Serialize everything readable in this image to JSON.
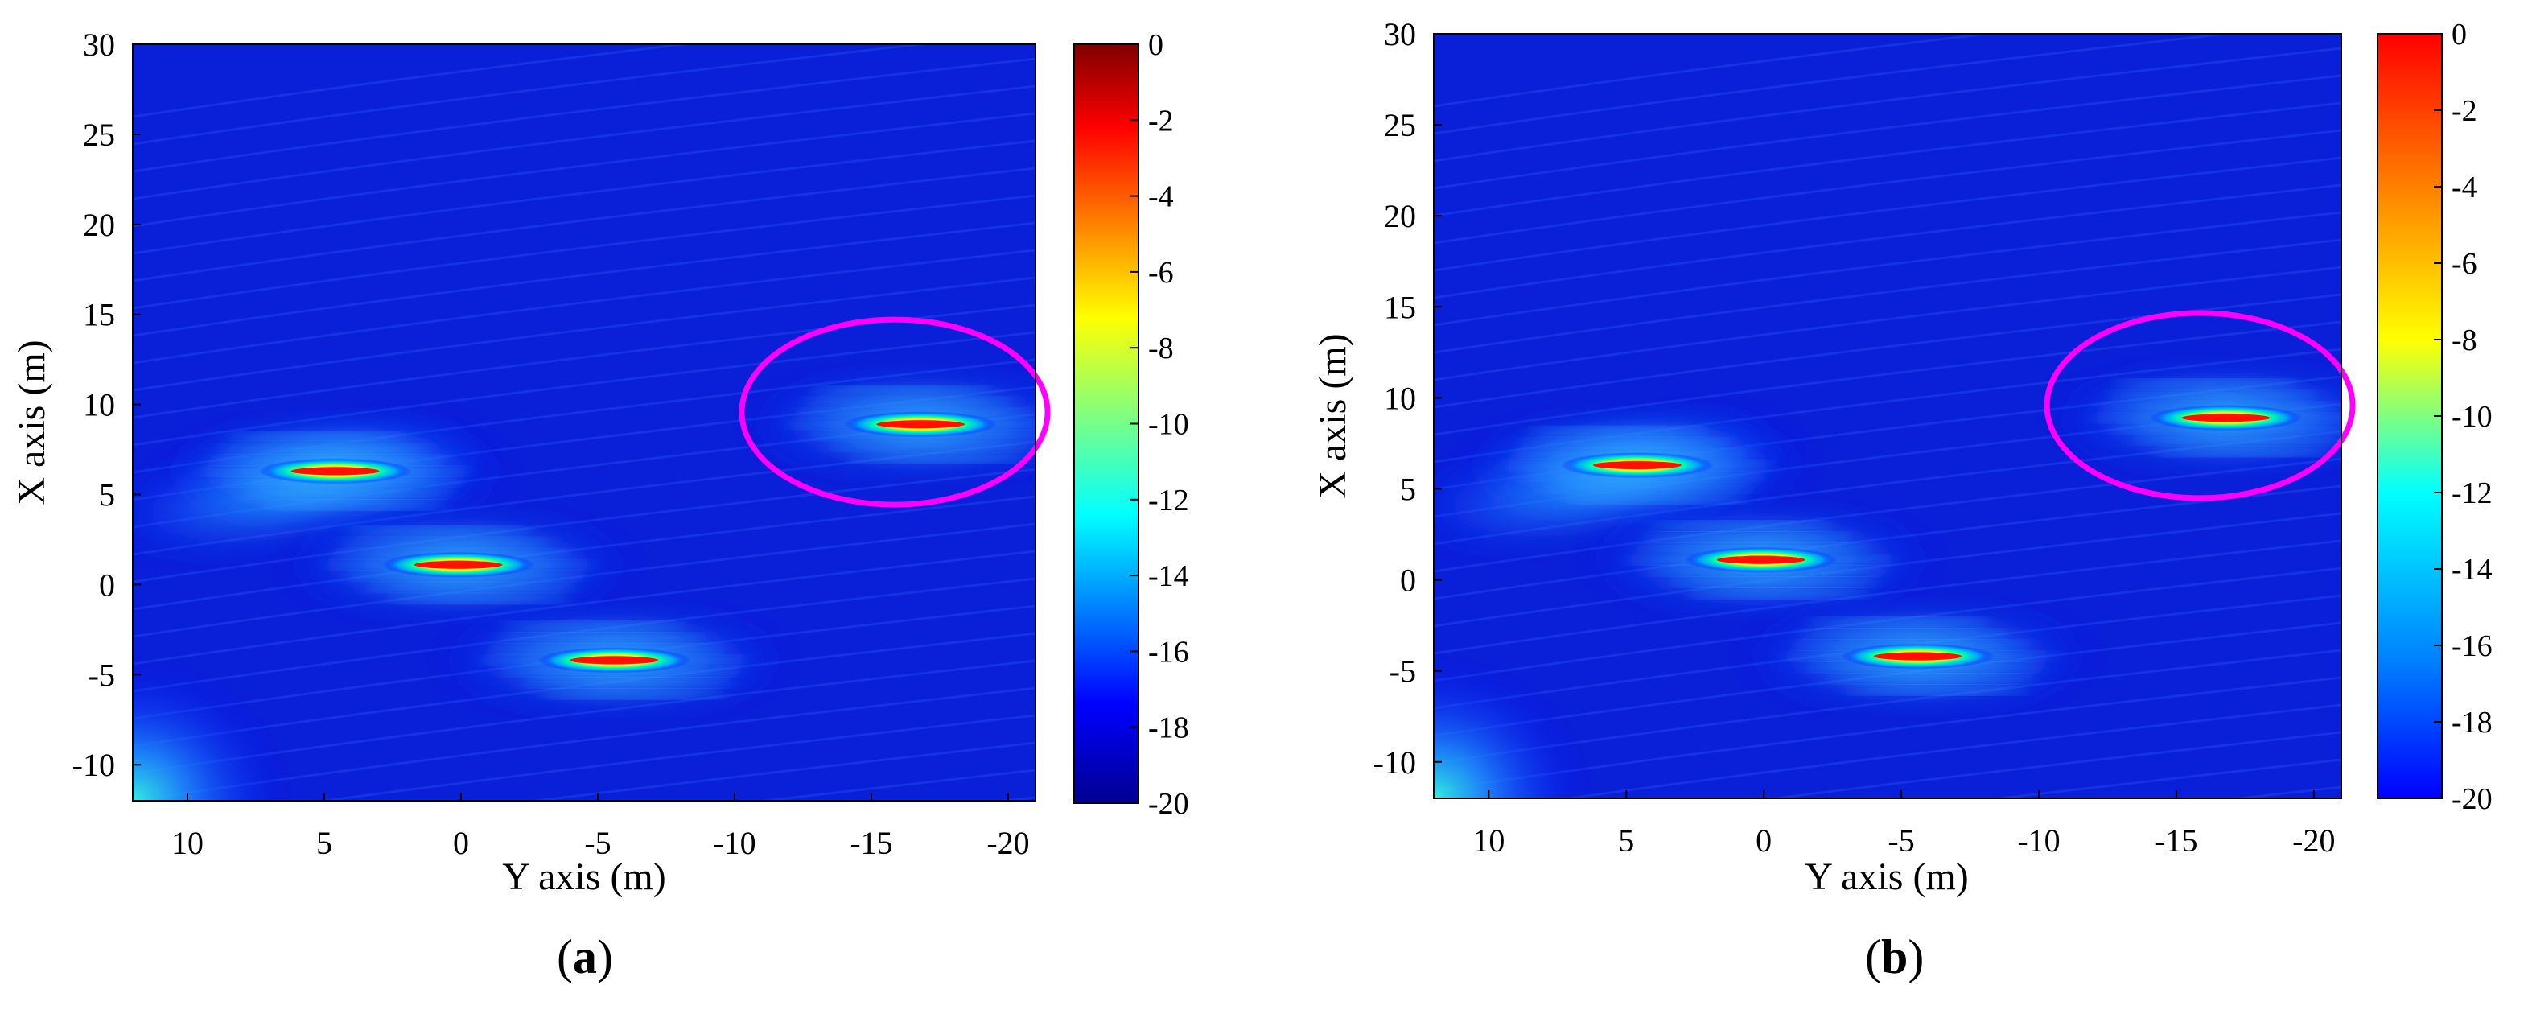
{
  "chart_data": [
    {
      "type": "heatmap",
      "panel_label": "a",
      "xlabel": "Y axis (m)",
      "ylabel": "X axis (m)",
      "xlim": [
        12,
        -21
      ],
      "ylim": [
        -12,
        30
      ],
      "xticks": [
        10,
        5,
        0,
        -5,
        -10,
        -15,
        -20
      ],
      "yticks": [
        -10,
        -5,
        0,
        5,
        10,
        15,
        20,
        25,
        30
      ],
      "colorbar": {
        "range": [
          -20,
          0
        ],
        "ticks": [
          0,
          -2,
          -4,
          -6,
          -8,
          -10,
          -12,
          -14,
          -16,
          -18,
          -20
        ],
        "colormap": "jet",
        "top_color": "#800000"
      },
      "background_level": -19,
      "hotspots": [
        {
          "y": 4.6,
          "x": 6.3,
          "peak": 0
        },
        {
          "y": 0.1,
          "x": 1.1,
          "peak": 0
        },
        {
          "y": -5.6,
          "x": -4.2,
          "peak": 0
        },
        {
          "y": -16.8,
          "x": 8.9,
          "peak": 0
        }
      ],
      "annotation": {
        "shape": "ellipse",
        "color": "#ff00ff",
        "center": [
          -16,
          9.8
        ],
        "encloses": "target at y=-16.8, x=8.9"
      }
    },
    {
      "type": "heatmap",
      "panel_label": "b",
      "xlabel": "Y axis (m)",
      "ylabel": "X axis (m)",
      "xlim": [
        12,
        -21
      ],
      "ylim": [
        -12,
        30
      ],
      "xticks": [
        10,
        5,
        0,
        -5,
        -10,
        -15,
        -20
      ],
      "yticks": [
        -10,
        -5,
        0,
        5,
        10,
        15,
        20,
        25,
        30
      ],
      "colorbar": {
        "range": [
          -20,
          0
        ],
        "ticks": [
          0,
          -2,
          -4,
          -6,
          -8,
          -10,
          -12,
          -14,
          -16,
          -18,
          -20
        ],
        "colormap": "jet",
        "top_color": "#ff0000"
      },
      "background_level": -19,
      "hotspots": [
        {
          "y": 4.6,
          "x": 6.3,
          "peak": 0
        },
        {
          "y": 0.1,
          "x": 1.1,
          "peak": 0
        },
        {
          "y": -5.6,
          "x": -4.2,
          "peak": 0
        },
        {
          "y": -16.8,
          "x": 8.9,
          "peak": 0
        }
      ],
      "annotation": {
        "shape": "ellipse",
        "color": "#ff00ff",
        "center": [
          -16,
          9.8
        ],
        "encloses": "target at y=-16.8, x=8.9"
      }
    }
  ]
}
